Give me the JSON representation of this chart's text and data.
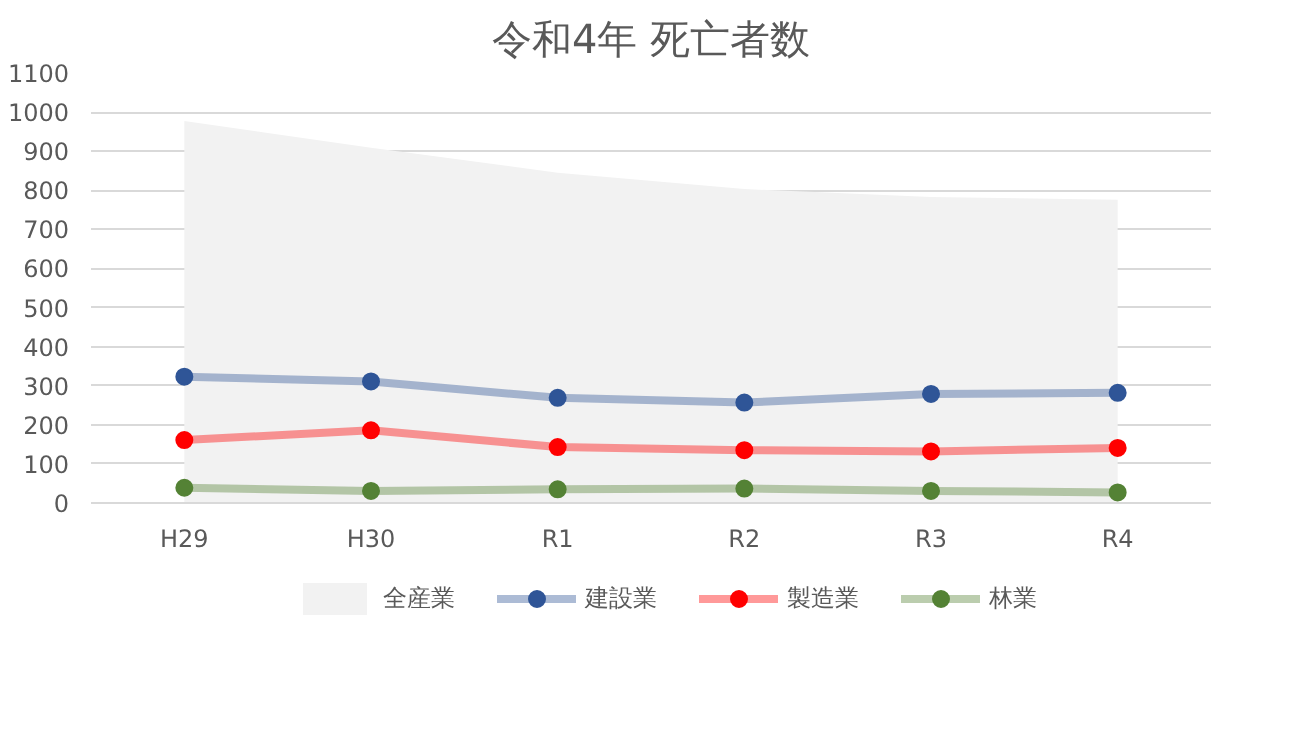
{
  "chart_data": {
    "type": "line",
    "title": "令和4年 死亡者数",
    "categories": [
      "H29",
      "H30",
      "R1",
      "R2",
      "R3",
      "R4"
    ],
    "series": [
      {
        "name": "全産業",
        "type": "area",
        "marker": "none",
        "color": "#f2f2f2",
        "values": [
          977,
          909,
          845,
          803,
          783,
          776
        ]
      },
      {
        "name": "建設業",
        "color": "#2f5597",
        "values": [
          323,
          311,
          269,
          257,
          279,
          282
        ]
      },
      {
        "name": "製造業",
        "color": "#ff0000",
        "values": [
          161,
          186,
          143,
          135,
          132,
          141
        ]
      },
      {
        "name": "林業",
        "color": "#548235",
        "values": [
          39,
          31,
          35,
          37,
          31,
          27
        ]
      }
    ],
    "ylim": [
      0,
      1100
    ],
    "yticks": [
      0,
      100,
      200,
      300,
      400,
      500,
      600,
      700,
      800,
      900,
      1000,
      1100
    ],
    "grid": "y",
    "legend": "bottom",
    "marker": "circle"
  }
}
